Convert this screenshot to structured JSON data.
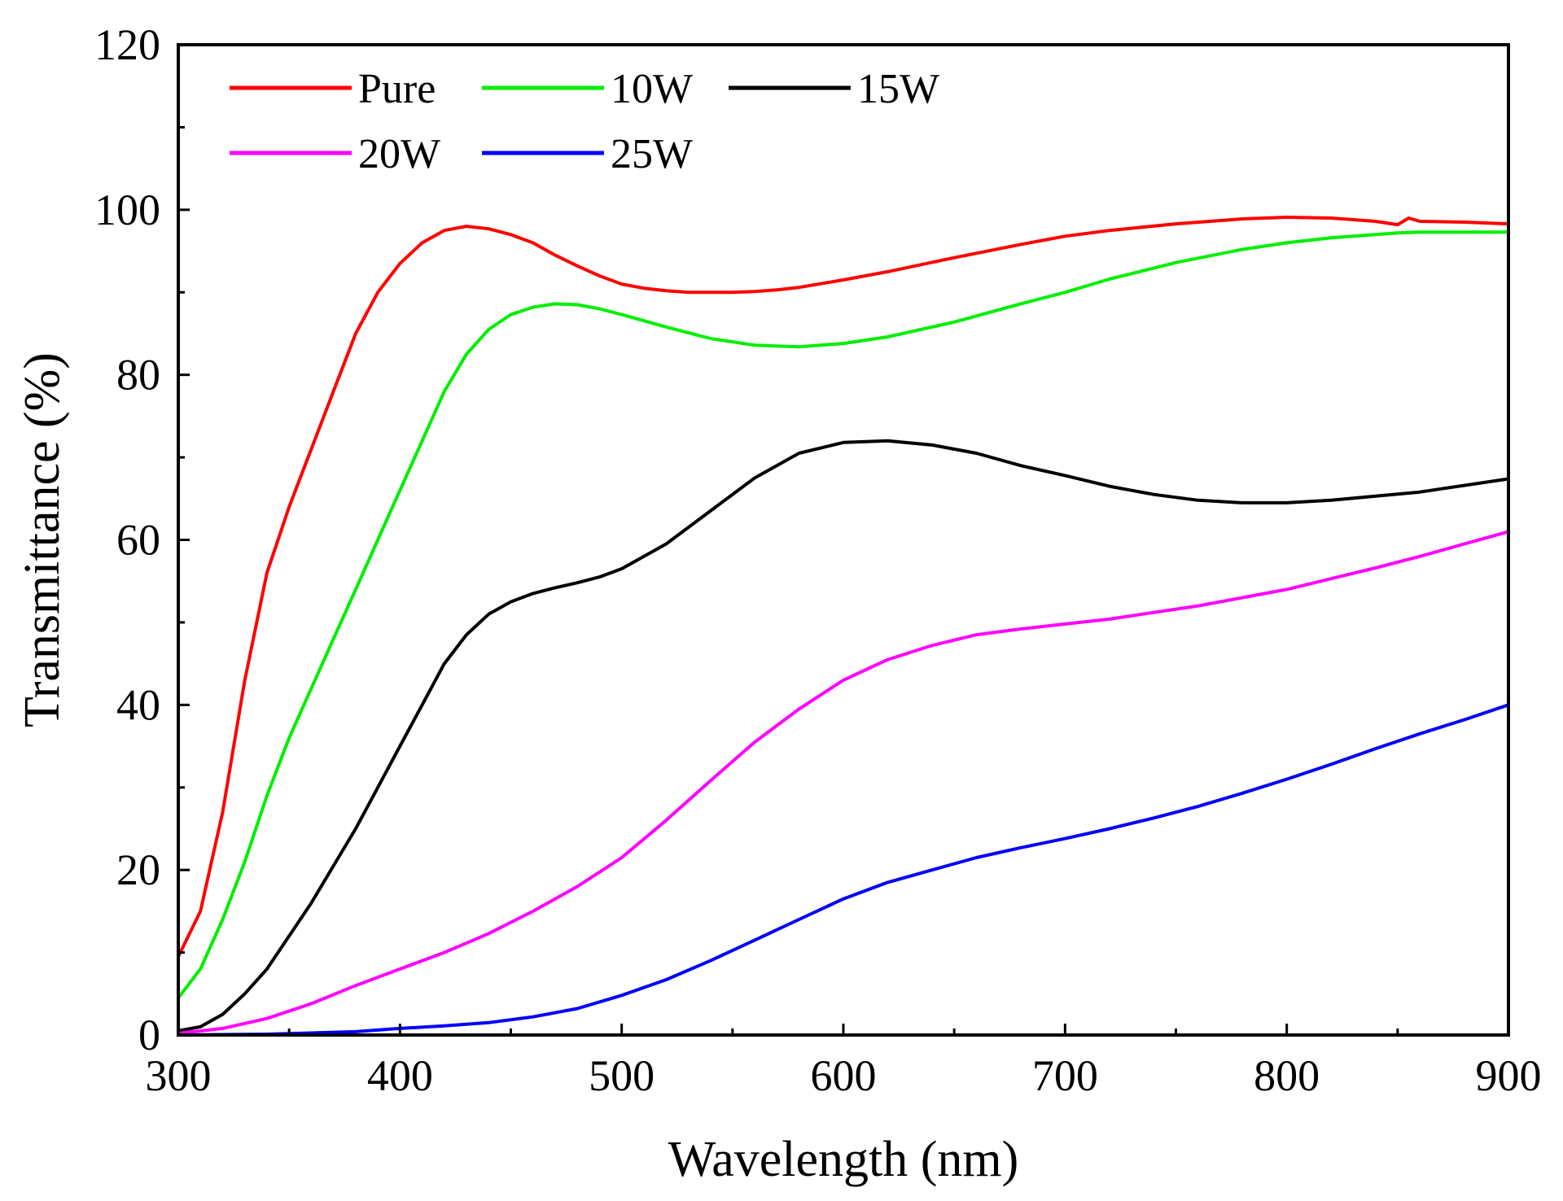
{
  "chart_data": {
    "type": "line",
    "title": "",
    "xlabel": "Wavelength (nm)",
    "ylabel": "Transmittance (%)",
    "xlim": [
      300,
      900
    ],
    "ylim": [
      0,
      120
    ],
    "xticks": [
      300,
      400,
      500,
      600,
      700,
      800,
      900
    ],
    "yticks": [
      0,
      20,
      40,
      60,
      80,
      100,
      120
    ],
    "legend_position": "top-left",
    "grid": false,
    "series": [
      {
        "name": "Pure",
        "color": "#ff0000",
        "x": [
          300,
          310,
          320,
          330,
          340,
          350,
          360,
          370,
          380,
          390,
          400,
          410,
          420,
          430,
          440,
          450,
          460,
          470,
          480,
          490,
          500,
          510,
          520,
          530,
          540,
          550,
          560,
          570,
          580,
          600,
          620,
          650,
          680,
          700,
          720,
          750,
          780,
          800,
          820,
          840,
          850,
          855,
          860,
          880,
          900
        ],
        "y": [
          9.5,
          15,
          27,
          43,
          56,
          64,
          71,
          78,
          85,
          90,
          93.5,
          96,
          97.5,
          98,
          97.7,
          97,
          96,
          94.5,
          93.2,
          92,
          91,
          90.5,
          90.2,
          90,
          90,
          90,
          90.1,
          90.3,
          90.6,
          91.5,
          92.5,
          94.2,
          95.8,
          96.8,
          97.5,
          98.3,
          98.9,
          99.1,
          99,
          98.6,
          98.2,
          99,
          98.6,
          98.5,
          98.3
        ]
      },
      {
        "name": "10W",
        "color": "#00ee00",
        "x": [
          300,
          310,
          320,
          330,
          340,
          350,
          360,
          370,
          380,
          390,
          400,
          410,
          420,
          430,
          440,
          450,
          460,
          470,
          480,
          490,
          500,
          520,
          540,
          560,
          580,
          600,
          620,
          650,
          680,
          700,
          720,
          750,
          780,
          800,
          820,
          840,
          850,
          860,
          880,
          900
        ],
        "y": [
          4.5,
          8,
          14,
          21,
          29,
          36,
          42,
          48,
          54,
          60,
          66,
          72,
          78,
          82.5,
          85.5,
          87.3,
          88.2,
          88.6,
          88.5,
          88,
          87.3,
          85.8,
          84.4,
          83.6,
          83.4,
          83.8,
          84.6,
          86.4,
          88.6,
          90,
          91.6,
          93.6,
          95.2,
          96,
          96.6,
          97,
          97.2,
          97.3,
          97.3,
          97.3
        ]
      },
      {
        "name": "15W",
        "color": "#000000",
        "x": [
          300,
          310,
          320,
          330,
          340,
          350,
          360,
          370,
          380,
          390,
          400,
          410,
          420,
          430,
          440,
          450,
          460,
          470,
          480,
          490,
          500,
          520,
          540,
          560,
          580,
          600,
          620,
          640,
          660,
          680,
          700,
          720,
          740,
          760,
          780,
          800,
          820,
          840,
          860,
          880,
          900
        ],
        "y": [
          0.5,
          1,
          2.5,
          5,
          8,
          12,
          16,
          20.5,
          25,
          30,
          35,
          40,
          45,
          48.5,
          51,
          52.5,
          53.5,
          54.2,
          54.8,
          55.5,
          56.5,
          59.5,
          63.5,
          67.5,
          70.5,
          71.8,
          72,
          71.5,
          70.5,
          69,
          67.8,
          66.5,
          65.5,
          64.8,
          64.5,
          64.5,
          64.8,
          65.3,
          65.8,
          66.6,
          67.4
        ]
      },
      {
        "name": "20W",
        "color": "#ff00ff",
        "x": [
          300,
          320,
          340,
          360,
          380,
          400,
          420,
          440,
          460,
          480,
          500,
          520,
          540,
          560,
          580,
          600,
          620,
          640,
          660,
          680,
          700,
          720,
          740,
          760,
          780,
          800,
          820,
          840,
          860,
          880,
          900
        ],
        "y": [
          0.2,
          0.8,
          2,
          3.8,
          6,
          8,
          10,
          12.3,
          15,
          18,
          21.5,
          26,
          30.8,
          35.5,
          39.5,
          43,
          45.5,
          47.2,
          48.5,
          49.2,
          49.8,
          50.4,
          51.2,
          52,
          53,
          54,
          55.3,
          56.6,
          58,
          59.5,
          61
        ]
      },
      {
        "name": "25W",
        "color": "#0000ff",
        "x": [
          300,
          340,
          380,
          400,
          420,
          440,
          460,
          480,
          500,
          520,
          540,
          560,
          580,
          600,
          620,
          640,
          660,
          680,
          700,
          720,
          740,
          760,
          780,
          800,
          820,
          840,
          860,
          880,
          900
        ],
        "y": [
          0,
          0.1,
          0.4,
          0.8,
          1.1,
          1.5,
          2.2,
          3.2,
          4.8,
          6.7,
          9,
          11.5,
          14,
          16.5,
          18.5,
          20,
          21.5,
          22.7,
          23.8,
          25,
          26.3,
          27.7,
          29.3,
          31,
          32.8,
          34.7,
          36.5,
          38.2,
          40
        ]
      }
    ]
  }
}
